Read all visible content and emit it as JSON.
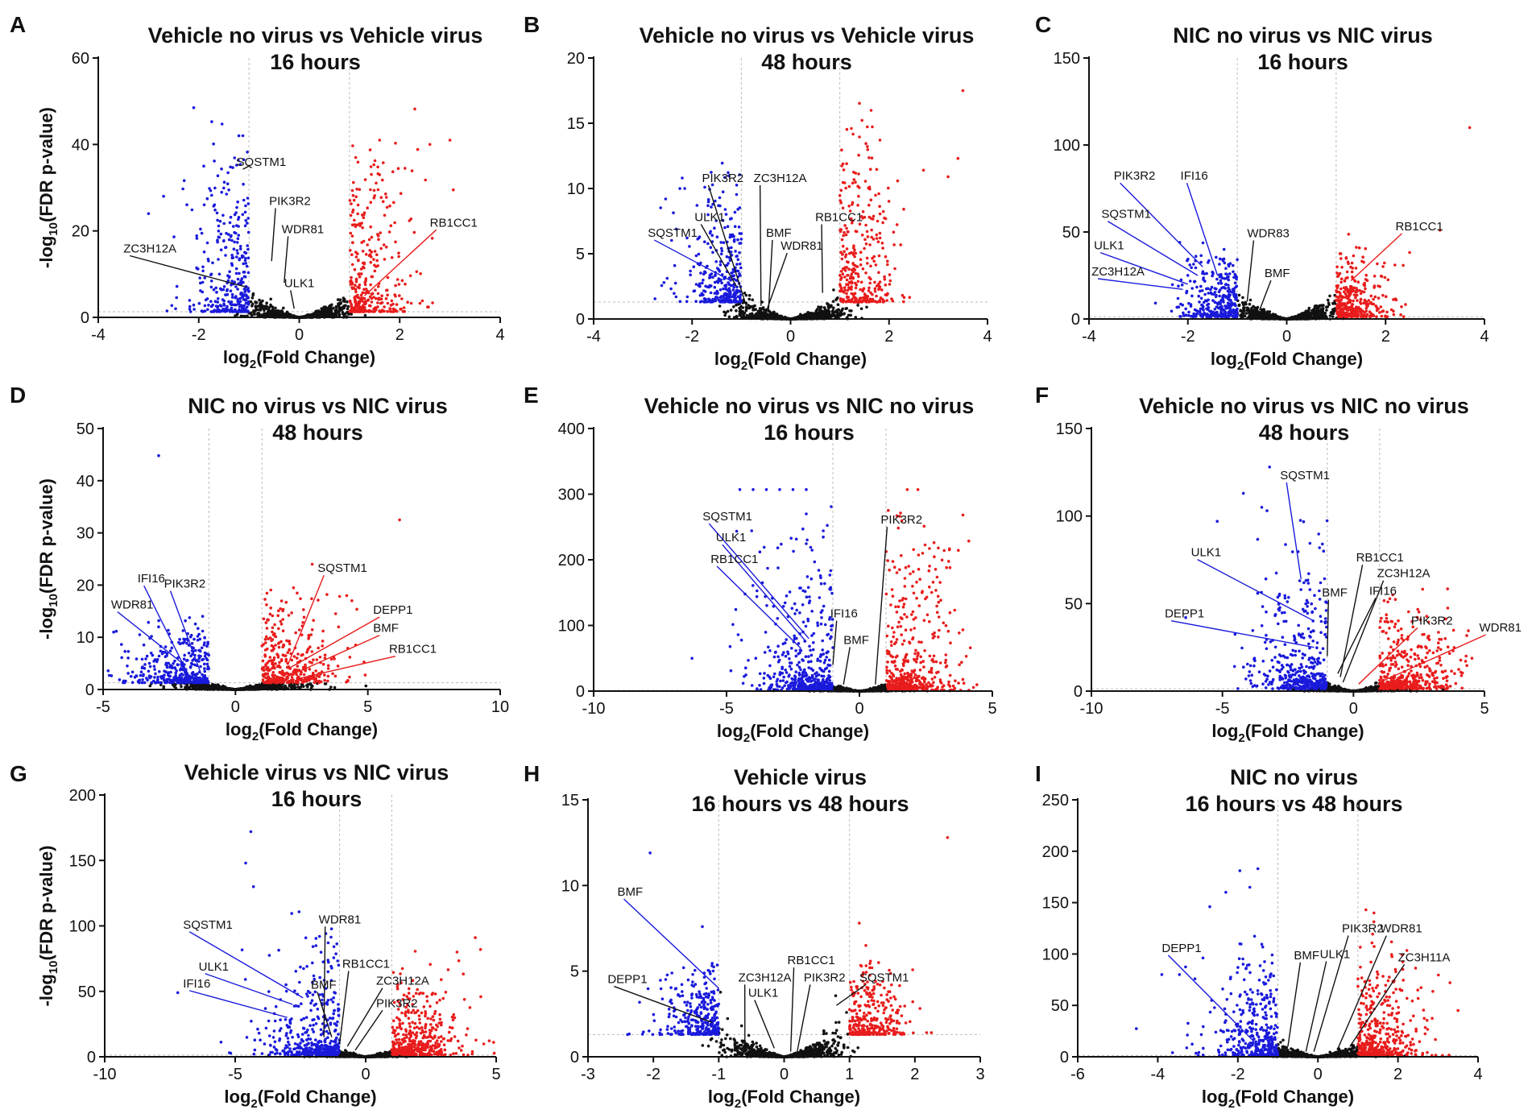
{
  "figure": {
    "xlabel_main": "log",
    "xlabel_sub": "2",
    "xlabel_tail": "(Fold Change)",
    "ylabel_head": "-log",
    "ylabel_sub": "10",
    "ylabel_tail": "(FDR p-value)",
    "colors": {
      "down": "#1a1adb",
      "up": "#e81c1c",
      "ns": "#111111",
      "down_line": "#1a1adb",
      "up_line": "#e81c1c",
      "ns_line": "#111111"
    }
  },
  "chart_data": [
    {
      "panel": "A",
      "type": "scatter",
      "title": [
        "Vehicle no virus vs Vehicle virus",
        "16 hours"
      ],
      "xlim": [
        -4,
        4
      ],
      "xticks": [
        -4,
        -2,
        0,
        2,
        4
      ],
      "ylim": [
        0,
        60
      ],
      "yticks": [
        0,
        20,
        40,
        60
      ],
      "fc_threshold": 1,
      "p_threshold": 1.3,
      "ylabel": true,
      "max_down": 48,
      "max_up": 48,
      "extreme_points": [
        [
          -2.1,
          48.5
        ],
        [
          -1.2,
          42
        ],
        [
          -1.9,
          35
        ],
        [
          -3,
          24
        ],
        [
          -2.7,
          28
        ],
        [
          2.3,
          48.2
        ],
        [
          1.6,
          41
        ],
        [
          3,
          41
        ],
        [
          2.6,
          40
        ]
      ],
      "genes": [
        {
          "name": "SQSTM1",
          "x": -1.0,
          "y": 35,
          "lx": -1.25,
          "ly": 35,
          "c": "ns"
        },
        {
          "name": "PIK3R2",
          "x": -0.55,
          "y": 13,
          "lx": -0.6,
          "ly": 26,
          "c": "ns"
        },
        {
          "name": "WDR81",
          "x": -0.3,
          "y": 8,
          "lx": -0.35,
          "ly": 19.5,
          "c": "ns"
        },
        {
          "name": "ZC3H12A",
          "x": -1.05,
          "y": 7,
          "lx": -3.5,
          "ly": 15,
          "c": "ns"
        },
        {
          "name": "ULK1",
          "x": -0.1,
          "y": 2,
          "lx": -0.3,
          "ly": 7,
          "c": "ns"
        },
        {
          "name": "RB1CC1",
          "x": 1.3,
          "y": 5,
          "lx": 2.6,
          "ly": 21,
          "c": "up"
        }
      ]
    },
    {
      "panel": "B",
      "type": "scatter",
      "title": [
        "Vehicle no virus vs Vehicle virus",
        "48 hours"
      ],
      "xlim": [
        -4,
        4
      ],
      "xticks": [
        -4,
        -2,
        0,
        2,
        4
      ],
      "ylim": [
        0,
        20
      ],
      "yticks": [
        0,
        5,
        10,
        15,
        20
      ],
      "fc_threshold": 1,
      "p_threshold": 1.3,
      "ylabel": false,
      "max_down": 11,
      "max_up": 17,
      "extreme_points": [
        [
          -2.2,
          10.8
        ],
        [
          -2.15,
          10
        ],
        [
          3.5,
          17.5
        ],
        [
          3.4,
          12.3
        ],
        [
          2.7,
          11.4
        ],
        [
          3.2,
          10.9
        ],
        [
          1.6,
          7.8
        ]
      ],
      "genes": [
        {
          "name": "PIK3R2",
          "x": -0.9,
          "y": 1,
          "lx": -1.8,
          "ly": 10.5,
          "c": "ns"
        },
        {
          "name": "ZC3H12A",
          "x": -0.6,
          "y": 1,
          "lx": -0.75,
          "ly": 10.5,
          "c": "ns"
        },
        {
          "name": "ULK1",
          "x": -1.1,
          "y": 2.5,
          "lx": -1.95,
          "ly": 7.5,
          "c": "ns"
        },
        {
          "name": "SQSTM1",
          "x": -1.25,
          "y": 3,
          "lx": -2.9,
          "ly": 6.3,
          "c": "down"
        },
        {
          "name": "BMF",
          "x": -0.45,
          "y": 0.5,
          "lx": -0.5,
          "ly": 6.3,
          "c": "ns"
        },
        {
          "name": "RB1CC1",
          "x": 0.65,
          "y": 2,
          "lx": 0.5,
          "ly": 7.5,
          "c": "ns"
        },
        {
          "name": "WDR81",
          "x": -0.5,
          "y": 0.5,
          "lx": -0.2,
          "ly": 5.3,
          "c": "ns"
        }
      ]
    },
    {
      "panel": "C",
      "type": "scatter",
      "title": [
        "NIC no virus vs NIC virus",
        "16 hours"
      ],
      "xlim": [
        -4,
        4
      ],
      "xticks": [
        -4,
        -2,
        0,
        2,
        4
      ],
      "ylim": [
        0,
        150
      ],
      "yticks": [
        0,
        50,
        100,
        150
      ],
      "fc_threshold": 1,
      "p_threshold": 1.3,
      "ylabel": false,
      "max_down": 48,
      "max_up": 48,
      "extreme_points": [
        [
          3.7,
          110
        ],
        [
          3.1,
          51
        ]
      ],
      "genes": [
        {
          "name": "PIK3R2",
          "x": -1.7,
          "y": 30,
          "lx": -3.5,
          "ly": 80,
          "c": "down"
        },
        {
          "name": "IFI16",
          "x": -1.4,
          "y": 25,
          "lx": -2.15,
          "ly": 80,
          "c": "down"
        },
        {
          "name": "SQSTM1",
          "x": -1.8,
          "y": 25,
          "lx": -3.75,
          "ly": 58,
          "c": "down"
        },
        {
          "name": "ULK1",
          "x": -2.0,
          "y": 20,
          "lx": -3.9,
          "ly": 40,
          "c": "down"
        },
        {
          "name": "ZC3H12A",
          "x": -2.1,
          "y": 17,
          "lx": -3.95,
          "ly": 25,
          "c": "down"
        },
        {
          "name": "WDR83",
          "x": -0.8,
          "y": 10,
          "lx": -0.8,
          "ly": 47,
          "c": "ns"
        },
        {
          "name": "BMF",
          "x": -0.55,
          "y": 5,
          "lx": -0.45,
          "ly": 24,
          "c": "ns"
        },
        {
          "name": "RB1CC1",
          "x": 1.3,
          "y": 22,
          "lx": 2.2,
          "ly": 51,
          "c": "up"
        }
      ]
    },
    {
      "panel": "D",
      "type": "scatter",
      "title": [
        "NIC no virus vs NIC virus",
        "48 hours"
      ],
      "xlim": [
        -5,
        10
      ],
      "xticks": [
        -5,
        0,
        5,
        10
      ],
      "ylim": [
        0,
        50
      ],
      "yticks": [
        0,
        10,
        20,
        30,
        40,
        50
      ],
      "fc_threshold": 1,
      "p_threshold": 1.3,
      "ylabel": true,
      "max_down": 14,
      "max_up": 20,
      "extreme_points": [
        [
          -2.9,
          44.8
        ],
        [
          6.2,
          32.5
        ],
        [
          2.9,
          24
        ],
        [
          -4.6,
          11
        ],
        [
          4.2,
          18
        ],
        [
          4.4,
          17
        ]
      ],
      "genes": [
        {
          "name": "IFI16",
          "x": -1.8,
          "y": 3,
          "lx": -3.7,
          "ly": 20.5,
          "c": "down"
        },
        {
          "name": "PIK3R2",
          "x": -1.3,
          "y": 3,
          "lx": -2.7,
          "ly": 19.5,
          "c": "down"
        },
        {
          "name": "WDR81",
          "x": -2.0,
          "y": 5,
          "lx": -4.7,
          "ly": 15.5,
          "c": "down"
        },
        {
          "name": "SQSTM1",
          "x": 2.0,
          "y": 5,
          "lx": 3.1,
          "ly": 22.5,
          "c": "up"
        },
        {
          "name": "DEPP1",
          "x": 2.0,
          "y": 4,
          "lx": 5.2,
          "ly": 14.5,
          "c": "up"
        },
        {
          "name": "BMF",
          "x": 2.2,
          "y": 3,
          "lx": 5.2,
          "ly": 11,
          "c": "up"
        },
        {
          "name": "RB1CC1",
          "x": 2.3,
          "y": 2,
          "lx": 5.8,
          "ly": 7,
          "c": "up"
        }
      ]
    },
    {
      "panel": "E",
      "type": "scatter",
      "title": [
        "Vehicle no virus vs NIC no virus",
        "16 hours"
      ],
      "xlim": [
        -10,
        5
      ],
      "xticks": [
        -10,
        -5,
        0,
        5
      ],
      "ylim": [
        0,
        400
      ],
      "yticks": [
        0,
        100,
        200,
        300,
        400
      ],
      "fc_threshold": 1,
      "p_threshold": 1.3,
      "ylabel": false,
      "max_down": 300,
      "max_up": 300,
      "extreme_points": [
        [
          -3.5,
          307
        ],
        [
          -3.0,
          307
        ],
        [
          -2.5,
          307
        ],
        [
          -2.0,
          307
        ],
        [
          -4.5,
          307
        ],
        [
          -4.0,
          307
        ],
        [
          1.8,
          307
        ],
        [
          2.2,
          307
        ],
        [
          -6.3,
          50
        ]
      ],
      "genes": [
        {
          "name": "SQSTM1",
          "x": -1.9,
          "y": 80,
          "lx": -5.9,
          "ly": 260,
          "c": "down"
        },
        {
          "name": "ULK1",
          "x": -2.0,
          "y": 75,
          "lx": -5.4,
          "ly": 228,
          "c": "down"
        },
        {
          "name": "RB1CC1",
          "x": -2.2,
          "y": 65,
          "lx": -5.6,
          "ly": 195,
          "c": "down"
        },
        {
          "name": "IFI16",
          "x": -1.0,
          "y": 40,
          "lx": -1.1,
          "ly": 112,
          "c": "ns"
        },
        {
          "name": "BMF",
          "x": -0.6,
          "y": 10,
          "lx": -0.6,
          "ly": 72,
          "c": "ns"
        },
        {
          "name": "PIK3R2",
          "x": 0.6,
          "y": 10,
          "lx": 0.8,
          "ly": 255,
          "c": "ns"
        }
      ]
    },
    {
      "panel": "F",
      "type": "scatter",
      "title": [
        "Vehicle no virus vs NIC no virus",
        "48 hours"
      ],
      "xlim": [
        -10,
        5
      ],
      "xticks": [
        -10,
        -5,
        0,
        5
      ],
      "ylim": [
        0,
        150
      ],
      "yticks": [
        0,
        50,
        100,
        150
      ],
      "fc_threshold": 1,
      "p_threshold": 1.3,
      "ylabel": false,
      "max_down": 100,
      "max_up": 58,
      "extreme_points": [
        [
          -3.2,
          128
        ],
        [
          -3.5,
          105
        ],
        [
          -3.3,
          103
        ],
        [
          -5.2,
          97
        ],
        [
          -4.2,
          113
        ],
        [
          -6.4,
          42
        ],
        [
          1.5,
          55
        ],
        [
          3.8,
          23
        ],
        [
          4.3,
          20
        ]
      ],
      "genes": [
        {
          "name": "SQSTM1",
          "x": -2.0,
          "y": 64,
          "lx": -2.8,
          "ly": 121,
          "c": "down"
        },
        {
          "name": "ULK1",
          "x": -1.5,
          "y": 40,
          "lx": -6.2,
          "ly": 77,
          "c": "down"
        },
        {
          "name": "DEPP1",
          "x": -1.5,
          "y": 25,
          "lx": -7.2,
          "ly": 42,
          "c": "down"
        },
        {
          "name": "BMF",
          "x": -1.0,
          "y": 20,
          "lx": -1.2,
          "ly": 54,
          "c": "ns"
        },
        {
          "name": "RB1CC1",
          "x": -0.5,
          "y": 8,
          "lx": 0.1,
          "ly": 74,
          "c": "ns"
        },
        {
          "name": "ZC3H12A",
          "x": -0.4,
          "y": 5,
          "lx": 0.9,
          "ly": 65,
          "c": "ns"
        },
        {
          "name": "IFI16",
          "x": -0.6,
          "y": 10,
          "lx": 0.6,
          "ly": 55,
          "c": "ns"
        },
        {
          "name": "PIK3R2",
          "x": 0.2,
          "y": 4,
          "lx": 2.2,
          "ly": 38,
          "c": "up"
        },
        {
          "name": "WDR81",
          "x": 1.0,
          "y": 5,
          "lx": 4.8,
          "ly": 34,
          "c": "up"
        }
      ]
    },
    {
      "panel": "G",
      "type": "scatter",
      "title": [
        "Vehicle virus vs NIC virus",
        "16 hours"
      ],
      "xlim": [
        -10,
        5
      ],
      "xticks": [
        -10,
        -5,
        0,
        5
      ],
      "ylim": [
        0,
        200
      ],
      "yticks": [
        0,
        50,
        100,
        150,
        200
      ],
      "fc_threshold": 1,
      "p_threshold": 1.3,
      "ylabel": true,
      "max_down": 120,
      "max_up": 80,
      "extreme_points": [
        [
          -4.4,
          172
        ],
        [
          -4.6,
          148
        ],
        [
          -4.3,
          130
        ],
        [
          -7.2,
          49
        ],
        [
          4.2,
          91
        ],
        [
          4.4,
          82
        ],
        [
          3.5,
          80
        ]
      ],
      "genes": [
        {
          "name": "SQSTM1",
          "x": -2.4,
          "y": 45,
          "lx": -7.0,
          "ly": 98,
          "c": "down"
        },
        {
          "name": "ULK1",
          "x": -2.8,
          "y": 40,
          "lx": -6.4,
          "ly": 66,
          "c": "down"
        },
        {
          "name": "IFI16",
          "x": -3.0,
          "y": 30,
          "lx": -7.0,
          "ly": 53,
          "c": "down"
        },
        {
          "name": "WDR81",
          "x": -1.6,
          "y": 15,
          "lx": -1.8,
          "ly": 102,
          "c": "ns"
        },
        {
          "name": "BMF",
          "x": -1.3,
          "y": 15,
          "lx": -2.1,
          "ly": 52,
          "c": "ns"
        },
        {
          "name": "RB1CC1",
          "x": -1.0,
          "y": 10,
          "lx": -0.9,
          "ly": 68,
          "c": "ns"
        },
        {
          "name": "ZC3H12A",
          "x": -0.7,
          "y": 8,
          "lx": 0.4,
          "ly": 55,
          "c": "ns"
        },
        {
          "name": "PIK3R2",
          "x": -0.4,
          "y": 5,
          "lx": 0.4,
          "ly": 38,
          "c": "ns"
        }
      ]
    },
    {
      "panel": "H",
      "type": "scatter",
      "title": [
        "Vehicle virus",
        "16 hours vs 48 hours"
      ],
      "xlim": [
        -3,
        3
      ],
      "xticks": [
        -3,
        -2,
        -1,
        0,
        1,
        2,
        3
      ],
      "ylim": [
        0,
        15
      ],
      "yticks": [
        0,
        5,
        10,
        15
      ],
      "fc_threshold": 1,
      "p_threshold": 1.3,
      "ylabel": false,
      "max_down": 5,
      "max_up": 5,
      "extreme_points": [
        [
          -2.05,
          11.9
        ],
        [
          2.5,
          12.8
        ],
        [
          -1.25,
          7.6
        ],
        [
          1.15,
          7.8
        ],
        [
          1.25,
          6.5
        ]
      ],
      "genes": [
        {
          "name": "BMF",
          "x": -1.0,
          "y": 4,
          "lx": -2.55,
          "ly": 9.4,
          "c": "down"
        },
        {
          "name": "DEPP1",
          "x": -1.1,
          "y": 2,
          "lx": -2.7,
          "ly": 4.3,
          "c": "ns"
        },
        {
          "name": "ZC3H12A",
          "x": -0.6,
          "y": 1,
          "lx": -0.7,
          "ly": 4.4,
          "c": "ns"
        },
        {
          "name": "ULK1",
          "x": -0.15,
          "y": 0.5,
          "lx": -0.55,
          "ly": 3.5,
          "c": "ns"
        },
        {
          "name": "RB1CC1",
          "x": 0.1,
          "y": 0.3,
          "lx": 0.05,
          "ly": 5.4,
          "c": "ns"
        },
        {
          "name": "PIK3R2",
          "x": 0.2,
          "y": 0.3,
          "lx": 0.3,
          "ly": 4.4,
          "c": "ns"
        },
        {
          "name": "SQSTM1",
          "x": 0.8,
          "y": 3,
          "lx": 1.15,
          "ly": 4.4,
          "c": "ns"
        }
      ]
    },
    {
      "panel": "I",
      "type": "scatter",
      "title": [
        "NIC no virus",
        "16 hours vs 48 hours"
      ],
      "xlim": [
        -6,
        4
      ],
      "xticks": [
        -6,
        -4,
        -2,
        0,
        2,
        4
      ],
      "ylim": [
        0,
        250
      ],
      "yticks": [
        0,
        50,
        100,
        150,
        200,
        250
      ],
      "fc_threshold": 1,
      "p_threshold": 1.3,
      "ylabel": false,
      "max_down": 120,
      "max_up": 140,
      "extreme_points": [
        [
          -1.95,
          181
        ],
        [
          -1.5,
          183
        ],
        [
          -1.7,
          165
        ],
        [
          -2.3,
          160
        ],
        [
          -2.7,
          146
        ],
        [
          -3.9,
          80
        ],
        [
          1.2,
          143
        ],
        [
          1.4,
          140
        ],
        [
          3.3,
          72
        ],
        [
          3.5,
          45
        ]
      ],
      "genes": [
        {
          "name": "DEPP1",
          "x": -1.6,
          "y": 15,
          "lx": -3.9,
          "ly": 102,
          "c": "down"
        },
        {
          "name": "BMF",
          "x": -0.75,
          "y": 10,
          "lx": -0.6,
          "ly": 95,
          "c": "ns"
        },
        {
          "name": "ULK1",
          "x": -0.3,
          "y": 5,
          "lx": 0.05,
          "ly": 96,
          "c": "ns"
        },
        {
          "name": "PIK3R2",
          "x": -0.1,
          "y": 5,
          "lx": 0.6,
          "ly": 121,
          "c": "ns"
        },
        {
          "name": "WDR81",
          "x": 0.5,
          "y": 8,
          "lx": 1.55,
          "ly": 121,
          "c": "ns"
        },
        {
          "name": "ZC3H11A",
          "x": 0.8,
          "y": 10,
          "lx": 2.0,
          "ly": 93,
          "c": "ns"
        }
      ]
    }
  ]
}
